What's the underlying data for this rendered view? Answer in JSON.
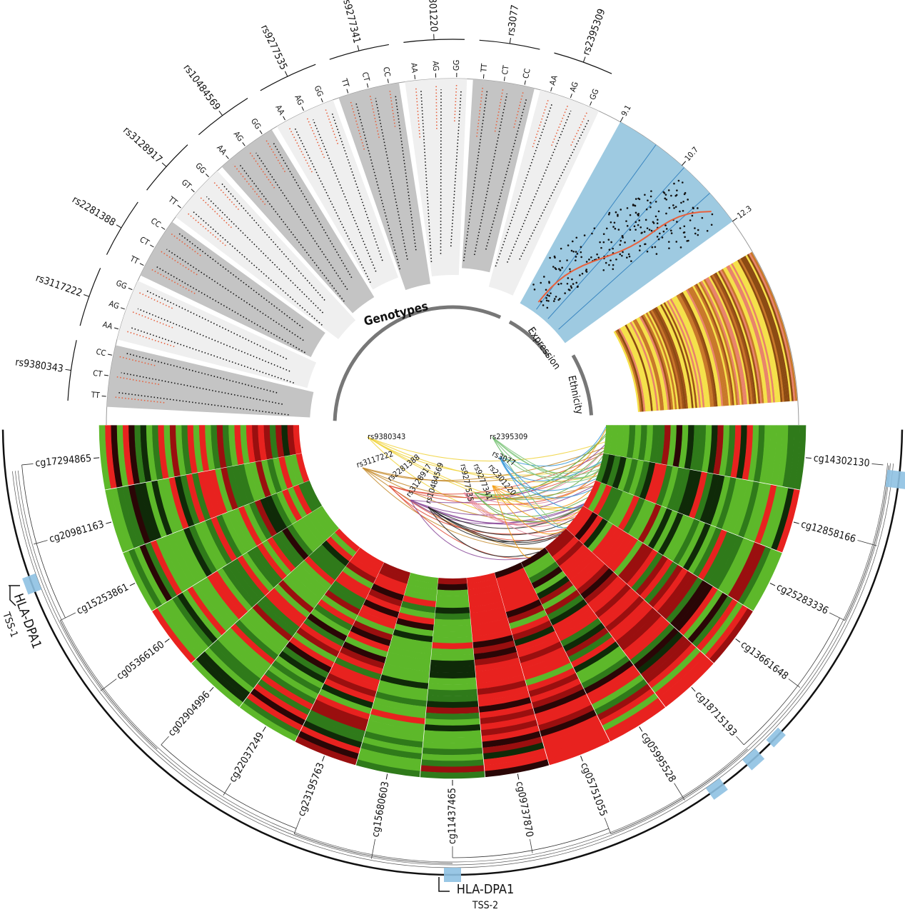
{
  "snps": [
    {
      "label": "rs9380343",
      "genotypes": [
        "TT",
        "CT",
        "CC"
      ]
    },
    {
      "label": "rs3117222",
      "genotypes": [
        "AA",
        "AG",
        "GG"
      ]
    },
    {
      "label": "rs2281388",
      "genotypes": [
        "TT",
        "CT",
        "CC"
      ]
    },
    {
      "label": "rs3128917",
      "genotypes": [
        "TT",
        "GT",
        "GG"
      ]
    },
    {
      "label": "rs10484569",
      "genotypes": [
        "AA",
        "AG",
        "GG"
      ]
    },
    {
      "label": "rs9277535",
      "genotypes": [
        "AA",
        "AG",
        "GG"
      ]
    },
    {
      "label": "rs9277341",
      "genotypes": [
        "TT",
        "CT",
        "CC"
      ]
    },
    {
      "label": "rs2301220",
      "genotypes": [
        "AA",
        "AG",
        "GG"
      ]
    },
    {
      "label": "rs3077",
      "genotypes": [
        "TT",
        "CT",
        "CC"
      ]
    },
    {
      "label": "rs2395309",
      "genotypes": [
        "AA",
        "AG",
        "GG"
      ]
    }
  ],
  "sections": {
    "genotypes": "Genotypes",
    "expression": "Expression",
    "ethnicity": "Ethnicity"
  },
  "expression_ticks": [
    9.1,
    10.7,
    12.3
  ],
  "cpgs": [
    "cg17294865",
    "cg20981163",
    "cg15253861",
    "cg05366160",
    "cg02904996",
    "cg22037249",
    "cg23195763",
    "cg15680603",
    "cg11437465",
    "cg09737870",
    "cg05751055",
    "cg05995528",
    "cg18715193",
    "cg13661648",
    "cg25283336",
    "cg12858166",
    "cg14302130"
  ],
  "genes": [
    {
      "name": "HLA-DPA1",
      "tss": "TSS-1"
    },
    {
      "name": "HLA-DPA1",
      "tss": "TSS-2"
    }
  ]
}
